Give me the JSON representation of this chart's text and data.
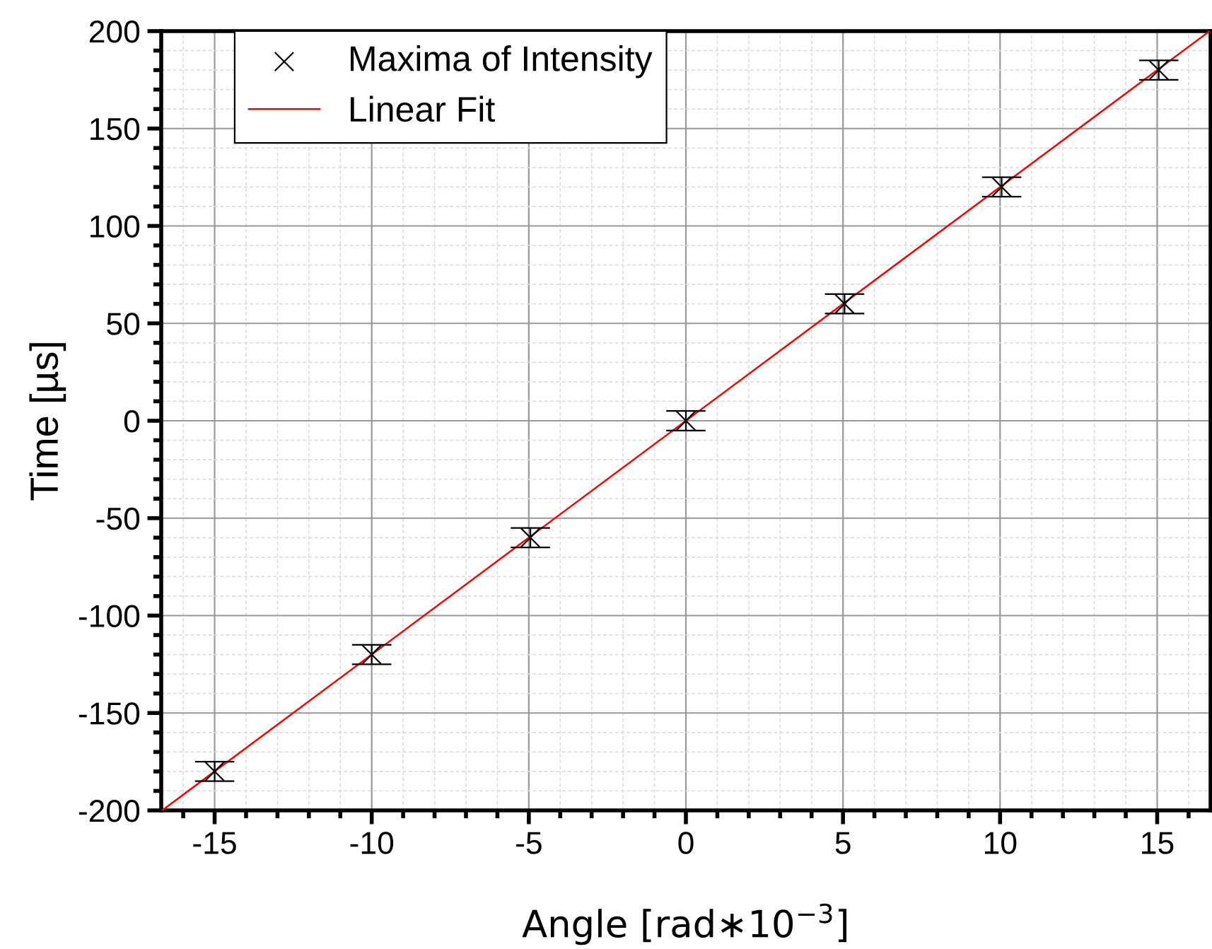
{
  "chart_data": {
    "type": "scatter",
    "xlabel": "Angle [rad∗10$^{−3}$]",
    "ylabel": "Time [µs]",
    "xlim": [
      -16.7,
      16.7
    ],
    "ylim": [
      -200,
      200
    ],
    "xticks": [
      -15,
      -10,
      -5,
      0,
      5,
      10,
      15
    ],
    "yticks": [
      -200,
      -150,
      -100,
      -50,
      0,
      50,
      100,
      150,
      200
    ],
    "grid": true,
    "legend": "top left",
    "series": [
      {
        "name": "Maxima of Intensity",
        "color": "#000000",
        "marker": "cross",
        "x": [
          -15,
          -10,
          -4.95,
          0,
          5.05,
          10.05,
          15.05
        ],
        "values": [
          -180,
          -120,
          -60,
          0,
          60,
          120,
          180
        ],
        "errors": [
          5,
          5,
          5,
          5,
          5,
          5,
          5
        ]
      },
      {
        "name": "Linear Fit",
        "type": "line",
        "color": "#ff0000",
        "line_style": "solid",
        "x": [
          -16.67,
          16.67
        ],
        "values": [
          -200,
          200
        ]
      }
    ]
  }
}
